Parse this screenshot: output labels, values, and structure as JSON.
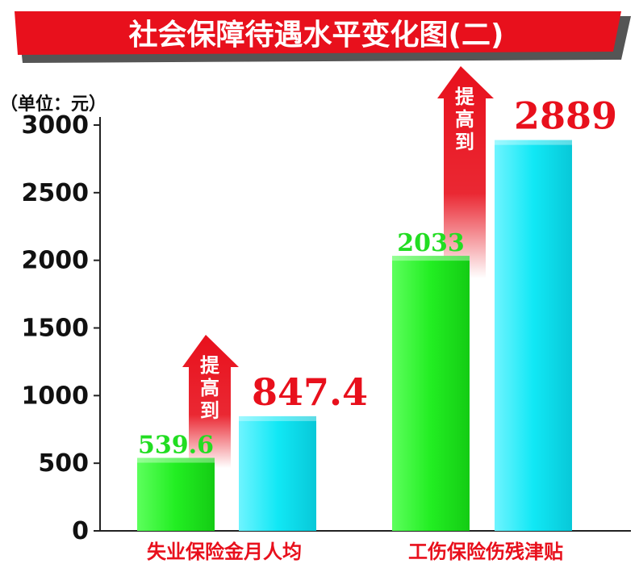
{
  "chart_data": {
    "type": "bar",
    "title": "社会保障待遇水平变化图(二)",
    "unit_label": "（单位：元）",
    "ylim": [
      0,
      3000
    ],
    "yticks": [
      0,
      500,
      1000,
      1500,
      2000,
      2500,
      3000
    ],
    "grid": false,
    "categories": [
      "失业保险金月人均",
      "工伤保险伤残津贴"
    ],
    "series": [
      {
        "color": "#22ee22",
        "values": [
          539.6,
          2033
        ],
        "labels": [
          "539.6",
          "2033"
        ]
      },
      {
        "color": "#11e8f5",
        "values": [
          847.4,
          2889
        ],
        "labels": [
          "847.4",
          "2889"
        ]
      }
    ],
    "arrow_text": "提高到",
    "colors": {
      "title_band": "#e8101c",
      "accent_red": "#e8101c",
      "before_label": "#22dd22",
      "after_label": "#e8101c",
      "category_label": "#e8101c"
    }
  }
}
